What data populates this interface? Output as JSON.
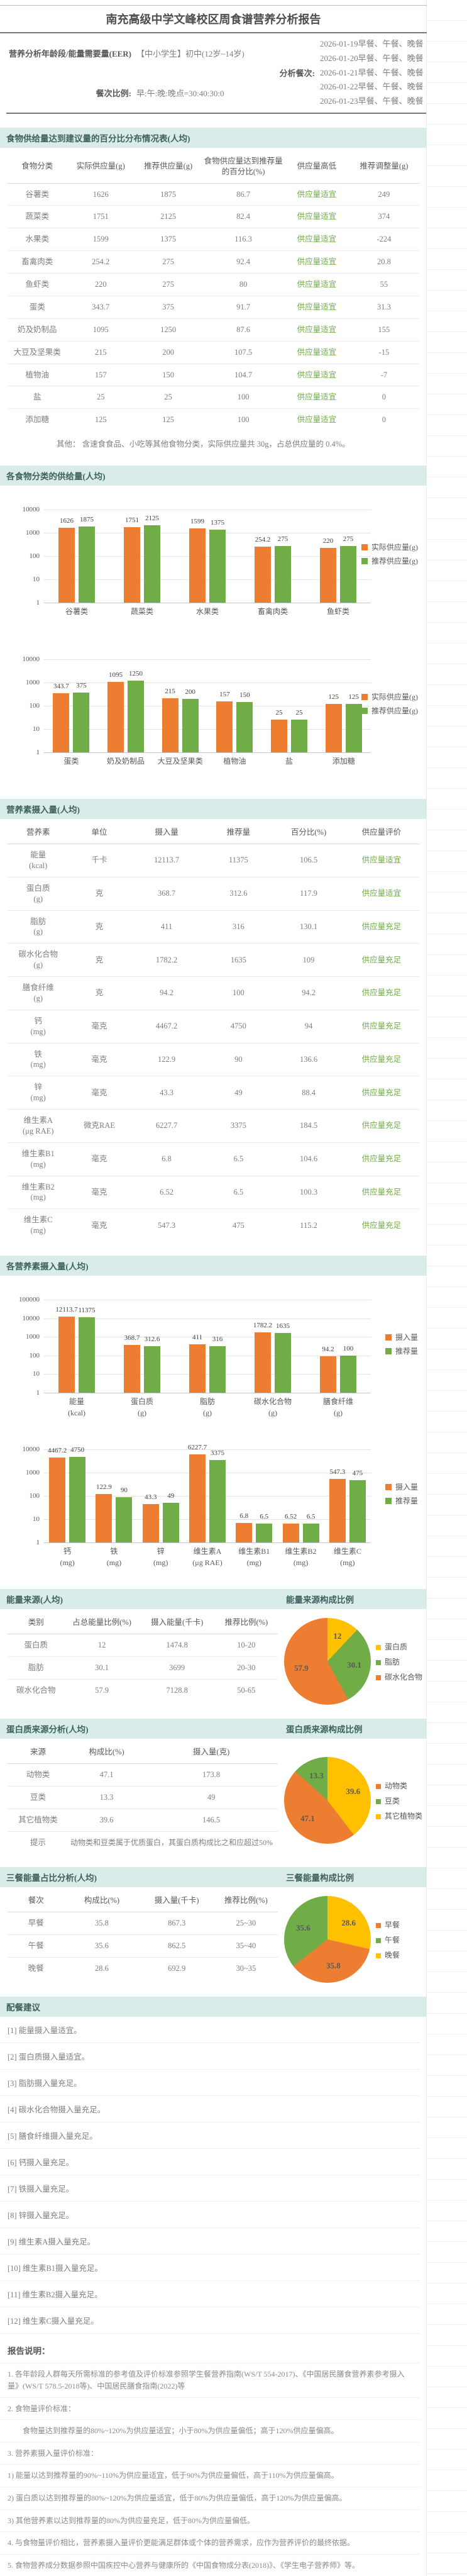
{
  "title": "南充高级中学文峰校区周食谱营养分析报告",
  "header": {
    "eer_label": "营养分析年龄段/能量需要量(EER)",
    "eer_value": "【中小学生】初中(12岁~14岁)",
    "meals_label": "分析餐次:",
    "meals": [
      "2026-01-19早餐、午餐、晚餐",
      "2026-01-20早餐、午餐、晚餐",
      "2026-01-21早餐、午餐、晚餐",
      "2026-01-22早餐、午餐、晚餐",
      "2026-01-23早餐、午餐、晚餐"
    ],
    "ratio_label": "餐次比例:",
    "ratio_value": "早:午:晚:晚点=30:40:30:0"
  },
  "colors": {
    "orange": "#ED7D31",
    "green": "#70AD47",
    "yellow": "#FFC000",
    "status_green": "#70AD47",
    "section_bg": "#D9ECEA"
  },
  "food_section": {
    "title": "食物供给量达到建议量的百分比分布情况表(人均)",
    "headers": [
      "食物分类",
      "实际供应量(g)",
      "推荐供应量(g)",
      "食物供应量达到推荐量的百分比(%)",
      "供应量高低",
      "推荐调整量(g)"
    ],
    "rows": [
      [
        "谷薯类",
        "1626",
        "1875",
        "86.7",
        "供应量适宜",
        "249"
      ],
      [
        "蔬菜类",
        "1751",
        "2125",
        "82.4",
        "供应量适宜",
        "374"
      ],
      [
        "水果类",
        "1599",
        "1375",
        "116.3",
        "供应量适宜",
        "-224"
      ],
      [
        "畜禽肉类",
        "254.2",
        "275",
        "92.4",
        "供应量适宜",
        "20.8"
      ],
      [
        "鱼虾类",
        "220",
        "275",
        "80",
        "供应量适宜",
        "55"
      ],
      [
        "蛋类",
        "343.7",
        "375",
        "91.7",
        "供应量适宜",
        "31.3"
      ],
      [
        "奶及奶制品",
        "1095",
        "1250",
        "87.6",
        "供应量适宜",
        "155"
      ],
      [
        "大豆及坚果类",
        "215",
        "200",
        "107.5",
        "供应量适宜",
        "-15"
      ],
      [
        "植物油",
        "157",
        "150",
        "104.7",
        "供应量适宜",
        "-7"
      ],
      [
        "盐",
        "25",
        "25",
        "100",
        "供应量适宜",
        "0"
      ],
      [
        "添加糖",
        "125",
        "125",
        "100",
        "供应量适宜",
        "0"
      ]
    ],
    "note": "其他：  含速食食品、小吃等其他食物分类，实际供应量共 30g，占总供应量的 0.4%。"
  },
  "food_charts_title": "各食物分类的供给量(人均)",
  "nutrient_section": {
    "title": "营养素摄入量(人均)",
    "headers": [
      "营养素",
      "单位",
      "摄入量",
      "推荐量",
      "百分比(%)",
      "供应量评价"
    ],
    "rows": [
      [
        [
          "能量",
          "(kcal)"
        ],
        "千卡",
        "12113.7",
        "11375",
        "106.5",
        "供应量适宜"
      ],
      [
        [
          "蛋白质",
          "(g)"
        ],
        "克",
        "368.7",
        "312.6",
        "117.9",
        "供应量适宜"
      ],
      [
        [
          "脂肪",
          "(g)"
        ],
        "克",
        "411",
        "316",
        "130.1",
        "供应量充足"
      ],
      [
        [
          "碳水化合物",
          "(g)"
        ],
        "克",
        "1782.2",
        "1635",
        "109",
        "供应量充足"
      ],
      [
        [
          "膳食纤维",
          "(g)"
        ],
        "克",
        "94.2",
        "100",
        "94.2",
        "供应量充足"
      ],
      [
        [
          "钙",
          "(mg)"
        ],
        "毫克",
        "4467.2",
        "4750",
        "94",
        "供应量充足"
      ],
      [
        [
          "铁",
          "(mg)"
        ],
        "毫克",
        "122.9",
        "90",
        "136.6",
        "供应量充足"
      ],
      [
        [
          "锌",
          "(mg)"
        ],
        "毫克",
        "43.3",
        "49",
        "88.4",
        "供应量充足"
      ],
      [
        [
          "维生素A",
          "(μg RAE)"
        ],
        "微克RAE",
        "6227.7",
        "3375",
        "184.5",
        "供应量充足"
      ],
      [
        [
          "维生素B1",
          "(mg)"
        ],
        "毫克",
        "6.8",
        "6.5",
        "104.6",
        "供应量充足"
      ],
      [
        [
          "维生素B2",
          "(mg)"
        ],
        "毫克",
        "6.52",
        "6.5",
        "100.3",
        "供应量充足"
      ],
      [
        [
          "维生素C",
          "(mg)"
        ],
        "毫克",
        "547.3",
        "475",
        "115.2",
        "供应量充足"
      ]
    ]
  },
  "nutrient_charts_title": "各营养素摄入量(人均)",
  "chart_data": [
    {
      "id": "food-chart-1",
      "type": "bar",
      "yscale": "log",
      "ylim": [
        1,
        10000
      ],
      "categories": [
        "谷薯类",
        "蔬菜类",
        "水果类",
        "畜禽肉类",
        "鱼虾类"
      ],
      "series": [
        {
          "name": "实际供应量(g)",
          "color": "#ED7D31",
          "values": [
            1626,
            1751,
            1599,
            254.2,
            220
          ]
        },
        {
          "name": "推荐供应量(g)",
          "color": "#70AD47",
          "values": [
            1875,
            2125,
            1375,
            275,
            275
          ]
        }
      ],
      "legend_position": "right",
      "grid": true
    },
    {
      "id": "food-chart-2",
      "type": "bar",
      "yscale": "log",
      "ylim": [
        1,
        10000
      ],
      "categories": [
        "蛋类",
        "奶及奶制品",
        "大豆及坚果类",
        "植物油",
        "盐",
        "添加糖"
      ],
      "series": [
        {
          "name": "实际供应量(g)",
          "color": "#ED7D31",
          "values": [
            343.7,
            1095,
            215,
            157,
            25,
            125
          ]
        },
        {
          "name": "推荐供应量(g)",
          "color": "#70AD47",
          "values": [
            375,
            1250,
            200,
            150,
            25,
            125
          ]
        }
      ],
      "legend_position": "right",
      "grid": true
    },
    {
      "id": "nutrient-chart-1",
      "type": "bar",
      "yscale": "log",
      "ylim": [
        1,
        100000
      ],
      "categories": [
        [
          "能量",
          "(kcal)"
        ],
        [
          "蛋白质",
          "(g)"
        ],
        [
          "脂肪",
          "(g)"
        ],
        [
          "碳水化合物",
          "(g)"
        ],
        [
          "膳食纤维",
          "(g)"
        ]
      ],
      "series": [
        {
          "name": "摄入量",
          "color": "#ED7D31",
          "values": [
            12113.7,
            368.7,
            411,
            1782.2,
            94.2
          ]
        },
        {
          "name": "推荐量",
          "color": "#70AD47",
          "values": [
            11375,
            312.6,
            316,
            1635,
            100
          ]
        }
      ],
      "legend_position": "right",
      "grid": true
    },
    {
      "id": "nutrient-chart-2",
      "type": "bar",
      "yscale": "log",
      "ylim": [
        1,
        10000
      ],
      "categories": [
        [
          "钙",
          "(mg)"
        ],
        [
          "铁",
          "(mg)"
        ],
        [
          "锌",
          "(mg)"
        ],
        [
          "维生素A",
          "(μg RAE)"
        ],
        [
          "维生素B1",
          "(mg)"
        ],
        [
          "维生素B2",
          "(mg)"
        ],
        [
          "维生素C",
          "(mg)"
        ]
      ],
      "series": [
        {
          "name": "摄入量",
          "color": "#ED7D31",
          "values": [
            4467.2,
            122.9,
            43.3,
            6227.7,
            6.8,
            6.52,
            547.3
          ]
        },
        {
          "name": "推荐量",
          "color": "#70AD47",
          "values": [
            4750,
            90,
            49,
            3375,
            6.5,
            6.5,
            475
          ]
        }
      ],
      "legend_position": "right",
      "grid": true
    },
    {
      "id": "energy-pie",
      "type": "pie",
      "title": "能量来源构成比例",
      "slices": [
        {
          "label": "蛋白质",
          "value": 12,
          "color": "#FFC000"
        },
        {
          "label": "脂肪",
          "value": 30.1,
          "color": "#70AD47"
        },
        {
          "label": "碳水化合物",
          "value": 57.9,
          "color": "#ED7D31"
        }
      ],
      "legend_order": [
        "蛋白质",
        "脂肪",
        "碳水化合物"
      ],
      "legend_position": "right"
    },
    {
      "id": "protein-pie",
      "type": "pie",
      "title": "蛋白质来源构成比例",
      "slices": [
        {
          "label": "其它植物类",
          "value": 39.6,
          "color": "#FFC000"
        },
        {
          "label": "动物类",
          "value": 47.1,
          "color": "#ED7D31"
        },
        {
          "label": "豆类",
          "value": 13.3,
          "color": "#70AD47"
        }
      ],
      "legend_order": [
        "动物类",
        "豆类",
        "其它植物类"
      ],
      "legend_position": "right"
    },
    {
      "id": "meal-pie",
      "type": "pie",
      "title": "三餐能量构成比例",
      "slices": [
        {
          "label": "晚餐",
          "value": 28.6,
          "color": "#FFC000"
        },
        {
          "label": "早餐",
          "value": 35.8,
          "color": "#ED7D31"
        },
        {
          "label": "午餐",
          "value": 35.6,
          "color": "#70AD47"
        }
      ],
      "legend_order": [
        "早餐",
        "午餐",
        "晚餐"
      ],
      "legend_position": "right"
    }
  ],
  "energy_source": {
    "title": "能量来源(人均)",
    "pie_title": "能量来源构成比例",
    "headers": [
      "类别",
      "占总能量比例(%)",
      "摄入能量(千卡)",
      "推荐比例(%)"
    ],
    "rows": [
      [
        "蛋白质",
        "12",
        "1474.8",
        "10-20"
      ],
      [
        "脂肪",
        "30.1",
        "3699",
        "20-30"
      ],
      [
        "碳水化合物",
        "57.9",
        "7128.8",
        "50-65"
      ]
    ]
  },
  "protein_source": {
    "title": "蛋白质来源分析(人均)",
    "pie_title": "蛋白质来源构成比例",
    "headers": [
      "来源",
      "构成比(%)",
      "摄入量(克)"
    ],
    "rows": [
      [
        "动物类",
        "47.1",
        "173.8"
      ],
      [
        "豆类",
        "13.3",
        "49"
      ],
      [
        "其它植物类",
        "39.6",
        "146.5"
      ]
    ],
    "tip_label": "提示",
    "tip": "动物类和豆类属于优质蛋白，其蛋白质构成比之和应超过50%"
  },
  "meal_energy": {
    "title": "三餐能量占比分析(人均)",
    "pie_title": "三餐能量构成比例",
    "headers": [
      "餐次",
      "构成比(%)",
      "摄入量(千卡)",
      "推荐比例(%)"
    ],
    "rows": [
      [
        "早餐",
        "35.8",
        "867.3",
        "25~30"
      ],
      [
        "午餐",
        "35.6",
        "862.5",
        "35~40"
      ],
      [
        "晚餐",
        "28.6",
        "692.9",
        "30~35"
      ]
    ]
  },
  "advice": {
    "title": "配餐建议",
    "items": [
      "[1] 能量摄入量适宜。",
      "[2] 蛋白质摄入量适宜。",
      "[3] 脂肪摄入量充足。",
      "[4] 碳水化合物摄入量充足。",
      "[5] 膳食纤维摄入量充足。",
      "[6] 钙摄入量充足。",
      "[7] 铁摄入量充足。",
      "[8] 锌摄入量充足。",
      "[9] 维生素A摄入量充足。",
      "[10] 维生素B1摄入量充足。",
      "[11] 维生素B2摄入量充足。",
      "[12] 维生素C摄入量充足。"
    ]
  },
  "notes": {
    "title": "报告说明：",
    "items": [
      "1. 各年龄段人群每天所需标准的参考值及评价标准参照学生餐营养指南(WS/T 554-2017)、《中国居民膳食营养素参考摄入量》(WS/T 578.5-2018等)、中国居民膳食指南(2022)等",
      "2. 食物量评价标准：",
      "　　食物量达到推荐量的80%~120%为供应量适宜；小于80%为供应量偏低；高于120%供应量偏高。",
      "3. 营养素摄入量评价标准：",
      "1) 能量以达到推荐量的90%~110%为供应量适宜，低于90%为供应量偏低，高于110%为供应量偏高。",
      "2) 蛋白质以达到推荐量的80%~120%为供应量适宜，低于80%为供应量偏低，高于120%为供应量偏高。",
      "3) 其他营养素以达到推荐量的80%为供应量充足，低于80%为供应量偏低。",
      "4. 与食物量评价相比，营养素摄入量评价更能满足群体或个体的营养需求，应作为营养评价的最终依据。",
      "5. 食物营养成分数据参照中国疾控中心营养与健康所的《中国食物成分表(2018)》、《学生电子营养师》等。"
    ]
  }
}
